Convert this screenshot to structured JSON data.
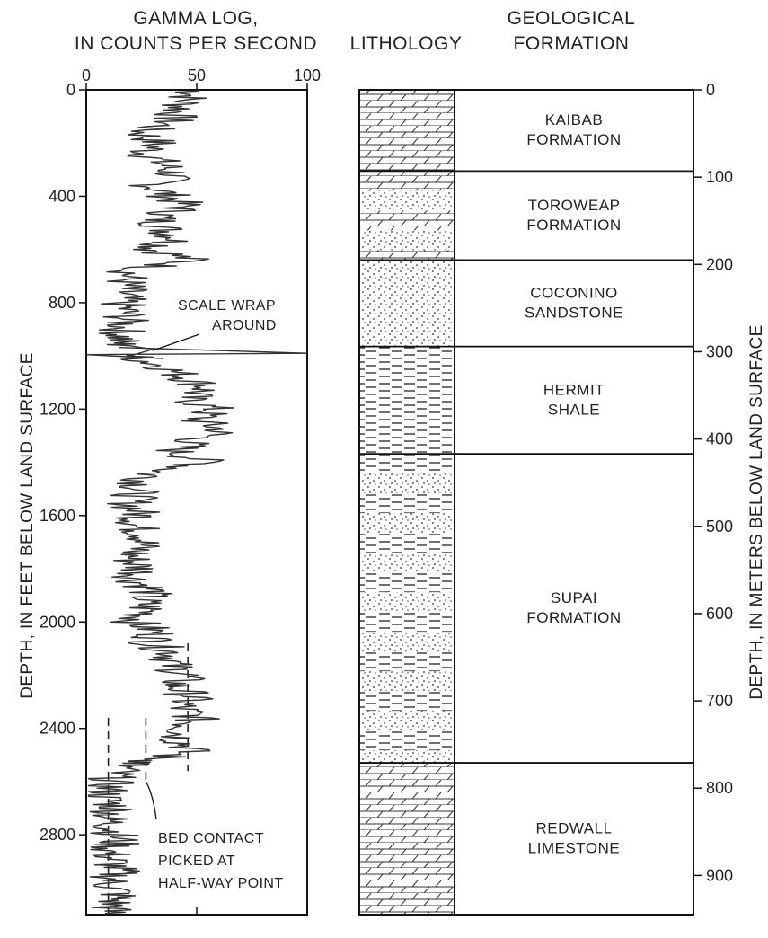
{
  "chart_data": {
    "type": "line",
    "gamma_header": [
      "GAMMA LOG,",
      "IN COUNTS PER SECOND"
    ],
    "lithology_header": "LITHOLOGY",
    "formation_header": [
      "GEOLOGICAL",
      "FORMATION"
    ],
    "left_axis_label": "DEPTH, IN FEET BELOW LAND SURFACE",
    "right_axis_label": "DEPTH, IN METERS BELOW LAND SURFACE",
    "x_ticks": [
      0,
      50,
      100
    ],
    "xlim": [
      0,
      100
    ],
    "feet_ticks": [
      0,
      400,
      800,
      1200,
      1600,
      2000,
      2400,
      2800
    ],
    "feet_range": [
      0,
      3100
    ],
    "meter_ticks": [
      0,
      100,
      200,
      300,
      400,
      500,
      600,
      700,
      800,
      900
    ],
    "formations": [
      {
        "name": [
          "KAIBAB",
          "FORMATION"
        ],
        "top_m": 0,
        "bottom_m": 93,
        "lithology": "limestone"
      },
      {
        "name": [
          "TOROWEAP",
          "FORMATION"
        ],
        "top_m": 93,
        "bottom_m": 195,
        "lithology": "limestone-sandstone"
      },
      {
        "name": [
          "COCONINO",
          "SANDSTONE"
        ],
        "top_m": 195,
        "bottom_m": 294,
        "lithology": "sandstone"
      },
      {
        "name": [
          "HERMIT",
          "SHALE"
        ],
        "top_m": 294,
        "bottom_m": 417,
        "lithology": "shale"
      },
      {
        "name": [
          "SUPAI",
          "FORMATION"
        ],
        "top_m": 417,
        "bottom_m": 771,
        "lithology": "shale-sandstone"
      },
      {
        "name": [
          "REDWALL",
          "LIMESTONE"
        ],
        "top_m": 771,
        "bottom_m": 945,
        "lithology": "limestone"
      }
    ],
    "series": [
      {
        "depth_ft": [
          0,
          40,
          80,
          120,
          160,
          200,
          240,
          280,
          320,
          360,
          400,
          440,
          480,
          520,
          560,
          600,
          640,
          680,
          720,
          760,
          800,
          840,
          880,
          920,
          955,
          975,
          1000,
          1040,
          1080,
          1120,
          1160,
          1200,
          1240,
          1280,
          1320,
          1360,
          1400,
          1440,
          1480,
          1520,
          1560,
          1600,
          1640,
          1680,
          1720,
          1760,
          1800,
          1840,
          1880,
          1920,
          1960,
          2000,
          2040,
          2080,
          2120,
          2160,
          2200,
          2240,
          2280,
          2320,
          2360,
          2400,
          2440,
          2480,
          2520,
          2540,
          2580,
          2620,
          2660,
          2700,
          2740,
          2780,
          2820,
          2860,
          2900,
          2940,
          2980,
          3020,
          3060,
          3100
        ],
        "counts": [
          50,
          45,
          42,
          38,
          25,
          32,
          27,
          35,
          40,
          30,
          38,
          45,
          32,
          35,
          42,
          30,
          48,
          20,
          18,
          17,
          16,
          18,
          17,
          16,
          15,
          30,
          20,
          35,
          45,
          55,
          45,
          58,
          50,
          62,
          48,
          40,
          55,
          30,
          25,
          22,
          20,
          25,
          22,
          28,
          24,
          20,
          25,
          22,
          30,
          25,
          28,
          22,
          32,
          30,
          40,
          38,
          45,
          40,
          48,
          42,
          50,
          45,
          42,
          48,
          30,
          18,
          12,
          10,
          8,
          14,
          10,
          12,
          15,
          10,
          12,
          14,
          10,
          15,
          12,
          10
        ]
      }
    ],
    "annotations": [
      {
        "lines": [
          "SCALE WRAP",
          "AROUND"
        ],
        "depth_ft": 980,
        "value": 30
      },
      {
        "lines": [
          "BED CONTACT",
          "PICKED AT",
          "HALF-WAY POINT"
        ],
        "depth_ft": 2620,
        "value": 27
      }
    ],
    "reference_lines": [
      {
        "value": 10,
        "from_ft": 2360,
        "to_ft": 3100
      },
      {
        "value": 27,
        "from_ft": 2360,
        "to_ft": 2600
      },
      {
        "value": 46,
        "from_ft": 2080,
        "to_ft": 2560
      }
    ]
  }
}
